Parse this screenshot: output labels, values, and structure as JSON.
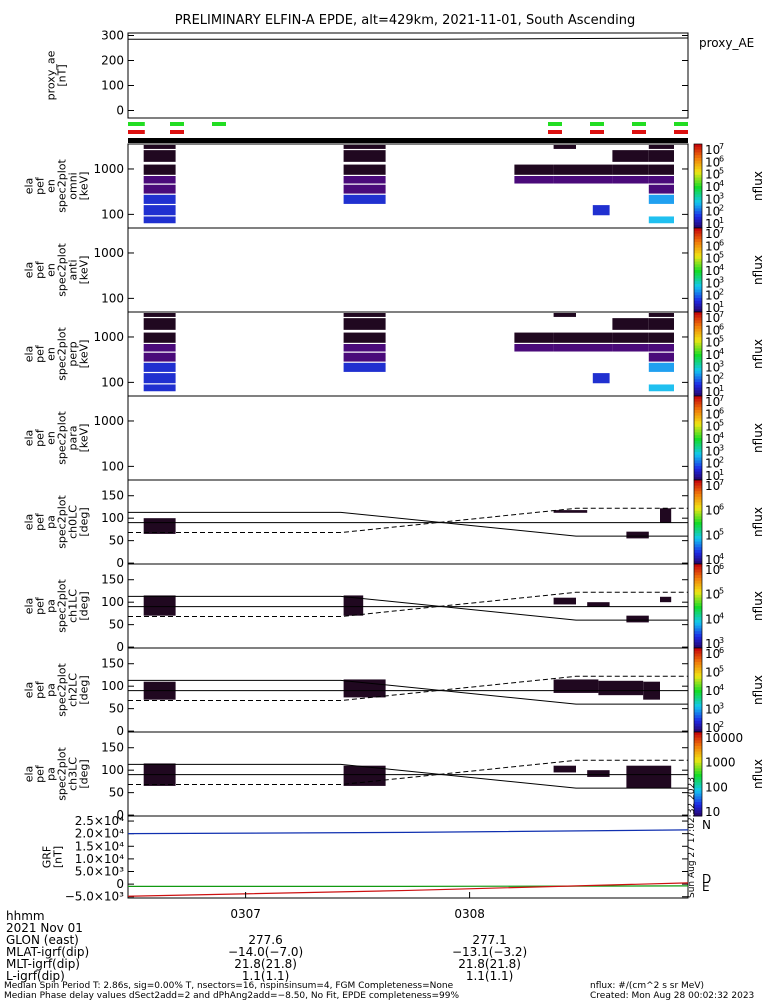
{
  "title": "PRELIMINARY ELFIN-A EPDE, alt=429km, 2021-11-01, South Ascending",
  "colors": {
    "spec_dark": "#200820",
    "spec_purple": "#4a0a7a",
    "spec_blue": "#2030d0",
    "spec_cyan": "#20c0f0",
    "sun_green": "#22dd22",
    "eclipse_red": "#dd1111",
    "grf_blue": "#1030b0",
    "grf_red": "#cc1111",
    "grf_green": "#119911"
  },
  "panels": [
    {
      "key": "proxy_ae",
      "ylabel": [
        "proxy_ae",
        "[nT]"
      ],
      "right_label": "proxy_AE",
      "yticks": [
        "300",
        "200",
        "100",
        "0"
      ],
      "ticks_num": [
        300,
        200,
        100,
        0
      ],
      "ylim": [
        -30,
        310
      ],
      "line_value": 285
    },
    {
      "key": "pef_en_spec2plot_omni",
      "ylabel": [
        "ela",
        "pef",
        "en",
        "spec2plot",
        "omni",
        "[keV]"
      ],
      "yticks": [
        "1000",
        "100"
      ],
      "ticks_num": [
        1000,
        100
      ],
      "ylim_log": [
        1.7,
        3.55
      ],
      "cbar": "log",
      "cbar_label": "nflux",
      "cbar_ticks": [
        "7",
        "6",
        "5",
        "4",
        "3",
        "2",
        "1"
      ]
    },
    {
      "key": "pef_en_spec2plot_anti",
      "ylabel": [
        "ela",
        "pef",
        "en",
        "spec2plot",
        "anti",
        "[keV]"
      ],
      "yticks": [
        "1000",
        "100"
      ],
      "ticks_num": [
        1000,
        100
      ],
      "ylim_log": [
        1.7,
        3.55
      ],
      "cbar": "log",
      "cbar_label": "nflux",
      "cbar_ticks": [
        "7",
        "6",
        "5",
        "4",
        "3",
        "2",
        "1"
      ]
    },
    {
      "key": "pef_en_spec2plot_perp",
      "ylabel": [
        "ela",
        "pef",
        "en",
        "spec2plot",
        "perp",
        "[keV]"
      ],
      "yticks": [
        "1000",
        "100"
      ],
      "ticks_num": [
        1000,
        100
      ],
      "ylim_log": [
        1.7,
        3.55
      ],
      "cbar": "log",
      "cbar_label": "nflux",
      "cbar_ticks": [
        "7",
        "6",
        "5",
        "4",
        "3",
        "2",
        "1"
      ]
    },
    {
      "key": "pef_en_spec2plot_para",
      "ylabel": [
        "ela",
        "pef",
        "en",
        "spec2plot",
        "para",
        "[keV]"
      ],
      "yticks": [
        "1000",
        "100"
      ],
      "ticks_num": [
        1000,
        100
      ],
      "ylim_log": [
        1.7,
        3.55
      ],
      "cbar": "log",
      "cbar_label": "nflux",
      "cbar_ticks": [
        "7",
        "6",
        "5",
        "4",
        "3",
        "2",
        "1"
      ]
    },
    {
      "key": "pef_pa_spec2plot_ch0LC",
      "ylabel": [
        "ela",
        "pef",
        "pa",
        "spec2plot",
        "ch0LC",
        "[deg]"
      ],
      "yticks": [
        "150",
        "100",
        "50",
        "0"
      ],
      "ticks_num": [
        150,
        100,
        50,
        0
      ],
      "ylim": [
        -2,
        185
      ],
      "cbar": "log",
      "cbar_label": "nflux",
      "cbar_ticks": [
        "7",
        "6",
        "5",
        "4"
      ]
    },
    {
      "key": "pef_pa_spec2plot_ch1LC",
      "ylabel": [
        "ela",
        "pef",
        "pa",
        "spec2plot",
        "ch1LC",
        "[deg]"
      ],
      "yticks": [
        "150",
        "100",
        "50",
        "0"
      ],
      "ticks_num": [
        150,
        100,
        50,
        0
      ],
      "ylim": [
        -2,
        185
      ],
      "cbar": "log",
      "cbar_label": "nflux",
      "cbar_ticks": [
        "6",
        "5",
        "4",
        "3"
      ]
    },
    {
      "key": "pef_pa_spec2plot_ch2LC",
      "ylabel": [
        "ela",
        "pef",
        "pa",
        "spec2plot",
        "ch2LC",
        "[deg]"
      ],
      "yticks": [
        "150",
        "100",
        "50",
        "0"
      ],
      "ticks_num": [
        150,
        100,
        50,
        0
      ],
      "ylim": [
        -2,
        185
      ],
      "cbar": "log",
      "cbar_label": "nflux",
      "cbar_ticks": [
        "6",
        "5",
        "4",
        "3",
        "2"
      ]
    },
    {
      "key": "pef_pa_spec2plot_ch3LC",
      "ylabel": [
        "ela",
        "pef",
        "pa",
        "spec2plot",
        "ch3LC",
        "[deg]"
      ],
      "yticks": [
        "150",
        "100",
        "50",
        "0"
      ],
      "ticks_num": [
        150,
        100,
        50,
        0
      ],
      "ylim": [
        -2,
        185
      ],
      "cbar": "lin",
      "cbar_label": "nflux",
      "cbar_ticks": [
        "10000",
        "1000",
        "100",
        "10"
      ]
    },
    {
      "key": "grf",
      "ylabel": [
        "GRF",
        "[nT]"
      ],
      "yticks": [
        "2.5×10⁴",
        "2.0×10⁴",
        "1.5×10⁴",
        "1.0×10⁴",
        "5.0×10³",
        "0",
        "−5.0×10³"
      ],
      "ticks_num": [
        25000,
        20000,
        15000,
        10000,
        5000,
        0,
        -5000
      ],
      "ylim": [
        -5500,
        27000
      ],
      "right_labels": [
        "N",
        "D",
        "E"
      ]
    }
  ],
  "chart_data": [
    {
      "type": "line",
      "name": "proxy_ae",
      "x": [
        0,
        0.55,
        1
      ],
      "y": [
        285,
        285,
        290
      ],
      "ylim": [
        -30,
        310
      ]
    },
    {
      "type": "heatmap",
      "name": "ela pef en spec2plot omni/perp",
      "x_blocks": [
        [
          0.02,
          0.08
        ],
        [
          0.38,
          0.45
        ],
        [
          0.7,
          0.8
        ],
        [
          0.82,
          0.98
        ]
      ],
      "ylim_log": [
        1.7,
        3.55
      ]
    },
    {
      "type": "line",
      "name": "loss cone",
      "x": [
        0,
        0.38,
        0.8,
        1
      ],
      "solid_upper": [
        113,
        113,
        60,
        60
      ],
      "dashed_lower": [
        68,
        68,
        122,
        122
      ],
      "solid_mid": [
        90,
        90,
        90,
        90
      ],
      "ylim": [
        -2,
        185
      ]
    },
    {
      "type": "line",
      "name": "GRF",
      "series": [
        {
          "name": "N",
          "x": [
            0,
            0.5,
            1
          ],
          "y": [
            20000,
            20500,
            21500
          ]
        },
        {
          "name": "E",
          "x": [
            0,
            0.5,
            1
          ],
          "y": [
            -900,
            -900,
            -700
          ]
        },
        {
          "name": "D",
          "x": [
            0,
            0.5,
            1
          ],
          "y": [
            -4800,
            -2500,
            500
          ]
        }
      ],
      "ylim": [
        -5500,
        27000
      ]
    }
  ],
  "xaxis": {
    "ticks": [
      "0307",
      "0308"
    ],
    "rows": [
      {
        "label": "hhmm",
        "v1": "",
        "v2": ""
      },
      {
        "label": "2021 Nov 01",
        "v1": "",
        "v2": ""
      },
      {
        "label": "GLON (east)",
        "v1": "277.6",
        "v2": "277.1"
      },
      {
        "label": "MLAT-igrf(dip)",
        "v1": "−14.0(−7.0)",
        "v2": "−13.1(−3.2)"
      },
      {
        "label": "MLT-igrf(dip)",
        "v1": "21.8(21.8)",
        "v2": "21.8(21.8)"
      },
      {
        "label": "L-igrf(dip)",
        "v1": "1.1(1.1)",
        "v2": "1.1(1.1)"
      }
    ]
  },
  "footer": {
    "line1": "Median Spin Period T: 2.86s, sig=0.00% T, nsectors=16, nspinsinsum=4, FGM Completeness=None",
    "line2": "Median Phase delay values dSect2add=2 and dPhAng2add=−8.50, No Fit, EPDE completeness=99%",
    "units": "nflux: #/(cm^2 s sr MeV)",
    "created": "Created: Mon Aug 28 00:02:32 2023",
    "side_stamp": "Sun Aug 27 17:02:32 2023"
  }
}
